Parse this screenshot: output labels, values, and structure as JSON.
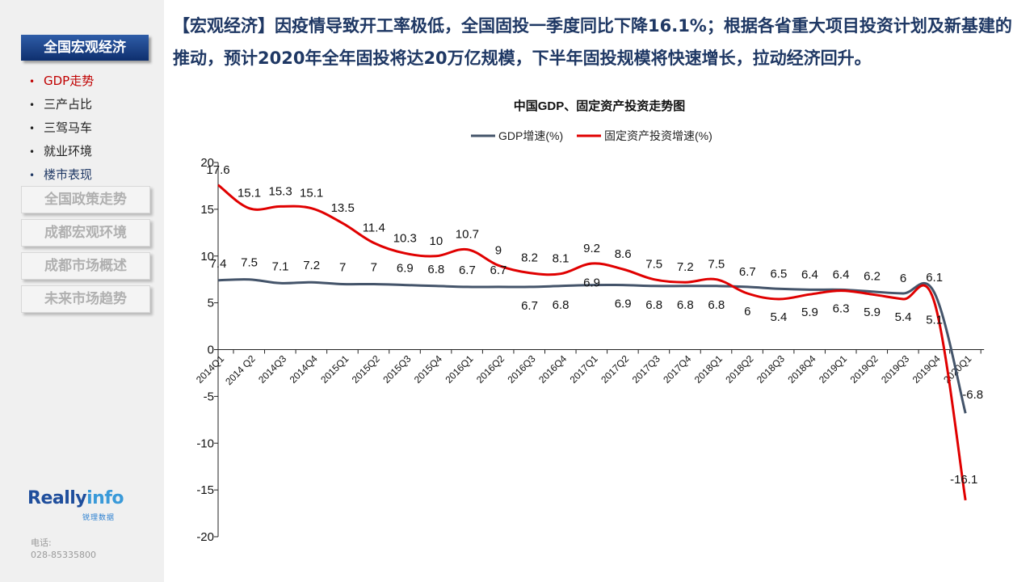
{
  "sidebar": {
    "main_nav": "全国宏观经济",
    "sub_items": [
      {
        "label": "GDP走势",
        "state": "active"
      },
      {
        "label": "三产占比",
        "state": "normal"
      },
      {
        "label": "三驾马车",
        "state": "normal"
      },
      {
        "label": "就业环境",
        "state": "normal"
      },
      {
        "label": "楼市表现",
        "state": "highlight"
      }
    ],
    "sections": [
      "全国政策走势",
      "成都宏观环境",
      "成都市场概述",
      "未来市场趋势"
    ],
    "logo": {
      "text_part1": "Really",
      "text_part2": "info",
      "subtitle": "锐理数据"
    },
    "contact_label": "电话:",
    "contact_phone": "028-85335800"
  },
  "headline": "【宏观经济】因疫情导致开工率极低，全国固投一季度同比下降16.1%；根据各省重大项目投资计划及新基建的推动，预计2020年全年固投将达20万亿规模，下半年固投规模将快速增长，拉动经济回升。",
  "colors": {
    "brand_blue": "#1f3864",
    "gdp_line": "#44546a",
    "fai_line": "#e00000",
    "active_red": "#c00000"
  },
  "chart_data": {
    "type": "line",
    "title": "中国GDP、固定资产投资走势图",
    "categories": [
      "2014Q1",
      "2014 Q2",
      "2014Q3",
      "2014Q4",
      "2015Q1",
      "2015Q2",
      "2015Q3",
      "2015Q4",
      "2016Q1",
      "2016Q2",
      "2016Q3",
      "2016Q4",
      "2017Q1",
      "2017Q2",
      "2017Q3",
      "2017Q4",
      "2018Q1",
      "2018Q2",
      "2018Q3",
      "2018Q4",
      "2019Q1",
      "2019Q2",
      "2019Q3",
      "2019Q4",
      "2020Q1"
    ],
    "series": [
      {
        "name": "GDP增速(%)",
        "color": "#44546a",
        "values": [
          7.4,
          7.5,
          7.1,
          7.2,
          7,
          7,
          6.9,
          6.8,
          6.7,
          6.7,
          6.7,
          6.8,
          6.9,
          6.9,
          6.8,
          6.8,
          6.8,
          6.7,
          6.5,
          6.4,
          6.4,
          6.2,
          6,
          6.1,
          -6.8
        ]
      },
      {
        "name": "固定资产投资增速(%)",
        "color": "#e00000",
        "values": [
          17.6,
          15.1,
          15.3,
          15.1,
          13.5,
          11.4,
          10.3,
          10,
          10.7,
          9,
          8.2,
          8.1,
          9.2,
          8.6,
          7.5,
          7.2,
          7.5,
          6,
          5.4,
          5.9,
          6.3,
          5.9,
          5.4,
          5.1,
          -16.1
        ]
      }
    ],
    "ylim": [
      -20,
      20
    ],
    "yticks": [
      20,
      15,
      10,
      5,
      0,
      -5,
      -10,
      -15,
      -20
    ],
    "legend_position": "top"
  }
}
